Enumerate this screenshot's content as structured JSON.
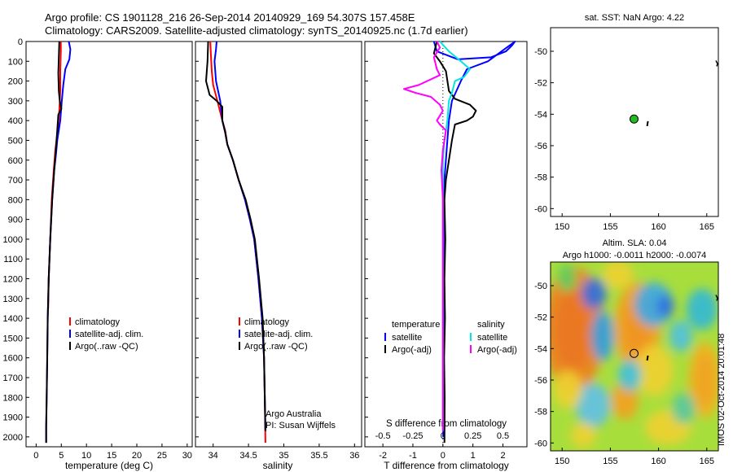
{
  "header": {
    "line1": "Argo profile: CS 1901128_216 26-Sep-2014 20140929_169 54.307S 157.458E",
    "line2": "Climatology: CARS2009. Satellite-adjusted climatology: synTS_20140925.nc (1.7d earlier)"
  },
  "colors": {
    "climatology": "#ff0000",
    "satellite": "#0000ff",
    "argo": "#000000",
    "sal_satellite": "#00e5e5",
    "sal_argo": "#ff00ff",
    "argo_marker": "#22bb22"
  },
  "chart_data": [
    {
      "id": "temp",
      "type": "line",
      "xlabel": "temperature (deg C)",
      "ylim": [
        0,
        2050
      ],
      "xlim": [
        -2,
        31
      ],
      "xticks": [
        0,
        5,
        10,
        15,
        20,
        25,
        30
      ],
      "yticks": [
        0,
        100,
        200,
        300,
        400,
        500,
        600,
        700,
        800,
        900,
        1000,
        1100,
        1200,
        1300,
        1400,
        1500,
        1600,
        1700,
        1800,
        1900,
        2000
      ],
      "legend": [
        {
          "label": "climatology",
          "color": "#ff0000"
        },
        {
          "label": "satellite-adj. clim.",
          "color": "#0000ff"
        },
        {
          "label": "Argo(..raw -QC)",
          "color": "#000000"
        }
      ],
      "series": [
        {
          "color": "#ff0000",
          "points": [
            [
              4.9,
              0
            ],
            [
              4.9,
              50
            ],
            [
              4.8,
              150
            ],
            [
              4.8,
              250
            ],
            [
              4.6,
              350
            ],
            [
              4.3,
              450
            ],
            [
              3.8,
              550
            ],
            [
              3.5,
              650
            ],
            [
              3.1,
              800
            ],
            [
              2.8,
              1000
            ],
            [
              2.5,
              1200
            ],
            [
              2.4,
              1350
            ]
          ]
        },
        {
          "color": "#0000ff",
          "points": [
            [
              6.5,
              0
            ],
            [
              6.8,
              40
            ],
            [
              6.6,
              90
            ],
            [
              5.8,
              140
            ],
            [
              5.4,
              220
            ],
            [
              5.1,
              300
            ],
            [
              4.8,
              400
            ],
            [
              4.2,
              500
            ],
            [
              3.9,
              580
            ],
            [
              3.6,
              650
            ],
            [
              3.2,
              800
            ],
            [
              2.8,
              1000
            ],
            [
              2.5,
              1200
            ],
            [
              2.3,
              1400
            ],
            [
              2.2,
              1600
            ],
            [
              2.1,
              1800
            ],
            [
              2.0,
              1950
            ],
            [
              2.0,
              2030
            ]
          ]
        },
        {
          "color": "#000000",
          "points": [
            [
              4.6,
              0
            ],
            [
              4.5,
              80
            ],
            [
              4.4,
              160
            ],
            [
              4.5,
              250
            ],
            [
              4.7,
              300
            ],
            [
              5.0,
              340
            ],
            [
              4.4,
              370
            ],
            [
              4.2,
              450
            ],
            [
              3.9,
              550
            ],
            [
              3.6,
              650
            ],
            [
              3.2,
              800
            ],
            [
              2.8,
              1000
            ],
            [
              2.5,
              1200
            ],
            [
              2.3,
              1400
            ],
            [
              2.2,
              1600
            ],
            [
              2.1,
              1800
            ],
            [
              2.0,
              1950
            ],
            [
              2.0,
              2030
            ]
          ]
        }
      ]
    },
    {
      "id": "sal",
      "type": "line",
      "xlabel": "salinity",
      "ylim": [
        0,
        2050
      ],
      "xlim": [
        33.75,
        36.1
      ],
      "xticks": [
        34,
        34.5,
        35,
        35.5,
        36
      ],
      "legend": [
        {
          "label": "climatology",
          "color": "#ff0000"
        },
        {
          "label": "satellite-adj. clim.",
          "color": "#0000ff"
        },
        {
          "label": "Argo(..raw -QC)",
          "color": "#000000"
        }
      ],
      "annotations": [
        "Argo Australia",
        "PI: Susan Wijffels"
      ],
      "series": [
        {
          "color": "#ff0000",
          "points": [
            [
              33.96,
              0
            ],
            [
              33.97,
              80
            ],
            [
              33.98,
              150
            ],
            [
              34.0,
              220
            ],
            [
              34.06,
              300
            ],
            [
              34.13,
              400
            ],
            [
              34.17,
              450
            ],
            [
              34.2,
              520
            ],
            [
              34.28,
              600
            ],
            [
              34.36,
              700
            ],
            [
              34.45,
              800
            ],
            [
              34.52,
              900
            ],
            [
              34.58,
              1000
            ],
            [
              34.64,
              1200
            ],
            [
              34.69,
              1400
            ],
            [
              34.72,
              1600
            ],
            [
              34.73,
              1800
            ],
            [
              34.74,
              2030
            ]
          ]
        },
        {
          "color": "#0000ff",
          "points": [
            [
              34.05,
              0
            ],
            [
              34.04,
              40
            ],
            [
              34.02,
              100
            ],
            [
              34.04,
              200
            ],
            [
              34.1,
              300
            ],
            [
              34.13,
              400
            ],
            [
              34.17,
              460
            ],
            [
              34.2,
              520
            ],
            [
              34.28,
              600
            ],
            [
              34.36,
              700
            ],
            [
              34.45,
              800
            ],
            [
              34.52,
              900
            ],
            [
              34.58,
              1000
            ],
            [
              34.64,
              1200
            ],
            [
              34.69,
              1400
            ],
            [
              34.72,
              1600
            ],
            [
              34.73,
              1800
            ],
            [
              34.74,
              1970
            ]
          ]
        },
        {
          "color": "#000000",
          "points": [
            [
              33.93,
              0
            ],
            [
              33.92,
              100
            ],
            [
              33.9,
              200
            ],
            [
              33.95,
              270
            ],
            [
              34.05,
              300
            ],
            [
              34.13,
              330
            ],
            [
              34.13,
              400
            ],
            [
              34.17,
              460
            ],
            [
              34.2,
              520
            ],
            [
              34.28,
              600
            ],
            [
              34.36,
              700
            ],
            [
              34.46,
              800
            ],
            [
              34.53,
              900
            ],
            [
              34.59,
              1000
            ],
            [
              34.65,
              1200
            ],
            [
              34.7,
              1400
            ],
            [
              34.72,
              1600
            ],
            [
              34.73,
              1800
            ],
            [
              34.74,
              1970
            ]
          ]
        }
      ]
    },
    {
      "id": "diff",
      "type": "line",
      "xlabel": "T difference from climatology",
      "xlabel_top": "S difference from climatology",
      "ylim": [
        0,
        2050
      ],
      "xlim": [
        -2.6,
        2.8
      ],
      "xticks": [
        -2,
        -1,
        0,
        1,
        2
      ],
      "xticks_top": [
        {
          "label": "-0.5",
          "t": -2
        },
        {
          "label": "-0.25",
          "t": -1
        },
        {
          "label": "0",
          "t": 0
        },
        {
          "label": "0.25",
          "t": 1
        },
        {
          "label": "0.5",
          "t": 2
        }
      ],
      "legend_left": {
        "title": "temperature",
        "items": [
          {
            "label": "satellite",
            "color": "#0000ff"
          },
          {
            "label": "Argo(-adj)",
            "color": "#000000"
          }
        ]
      },
      "legend_right": {
        "title": "salinity",
        "items": [
          {
            "label": "satellite",
            "color": "#00e5e5"
          },
          {
            "label": "Argo(-adj)",
            "color": "#ff00ff"
          }
        ]
      },
      "series": [
        {
          "color": "#0000ff",
          "points": [
            [
              -0.3,
              0
            ],
            [
              -0.2,
              50
            ],
            [
              0.5,
              90
            ],
            [
              1.6,
              80
            ],
            [
              2.1,
              50
            ],
            [
              2.3,
              20
            ],
            [
              2.4,
              0
            ],
            [
              1.5,
              100
            ],
            [
              0.8,
              140
            ],
            [
              0.6,
              200
            ],
            [
              0.3,
              300
            ],
            [
              0.2,
              400
            ],
            [
              0.15,
              500
            ],
            [
              0.1,
              600
            ],
            [
              0.05,
              700
            ],
            [
              0.03,
              900
            ],
            [
              0.02,
              1200
            ],
            [
              0.02,
              1600
            ],
            [
              0.01,
              2000
            ]
          ]
        },
        {
          "color": "#000000",
          "points": [
            [
              -0.2,
              0
            ],
            [
              -0.3,
              60
            ],
            [
              -0.1,
              100
            ],
            [
              0.1,
              150
            ],
            [
              0.2,
              250
            ],
            [
              0.4,
              290
            ],
            [
              0.9,
              320
            ],
            [
              1.1,
              350
            ],
            [
              1.0,
              380
            ],
            [
              0.8,
              400
            ],
            [
              0.4,
              420
            ],
            [
              0.3,
              500
            ],
            [
              0.2,
              600
            ],
            [
              0.1,
              700
            ],
            [
              0.05,
              800
            ],
            [
              0.08,
              1000
            ],
            [
              0.05,
              1200
            ],
            [
              0.07,
              1400
            ],
            [
              0.04,
              1600
            ],
            [
              0.06,
              1800
            ],
            [
              0.05,
              2030
            ]
          ]
        },
        {
          "color": "#00e5e5",
          "points": [
            [
              -0.1,
              0
            ],
            [
              0.2,
              50
            ],
            [
              0.6,
              100
            ],
            [
              0.9,
              140
            ],
            [
              0.7,
              180
            ],
            [
              0.4,
              200
            ],
            [
              0.3,
              260
            ],
            [
              0.2,
              300
            ],
            [
              0.15,
              400
            ],
            [
              0.05,
              500
            ],
            [
              0.0,
              600
            ],
            [
              0.0,
              800
            ],
            [
              0.0,
              1000
            ],
            [
              0.0,
              1200
            ],
            [
              0.0,
              1500
            ],
            [
              0.0,
              1800
            ],
            [
              0.0,
              1970
            ]
          ]
        },
        {
          "color": "#ff00ff",
          "points": [
            [
              -0.2,
              0
            ],
            [
              -0.1,
              30
            ],
            [
              -0.3,
              80
            ],
            [
              -0.2,
              140
            ],
            [
              -0.1,
              170
            ],
            [
              -0.8,
              220
            ],
            [
              -1.3,
              240
            ],
            [
              -0.9,
              260
            ],
            [
              -0.4,
              280
            ],
            [
              -0.1,
              320
            ],
            [
              0.0,
              350
            ],
            [
              -0.2,
              400
            ],
            [
              -0.1,
              420
            ],
            [
              0.1,
              450
            ],
            [
              0.0,
              550
            ],
            [
              -0.05,
              650
            ],
            [
              0.0,
              800
            ],
            [
              0.0,
              1000
            ],
            [
              0.0,
              1200
            ],
            [
              0.0,
              1500
            ],
            [
              0.0,
              1800
            ],
            [
              0.0,
              1970
            ]
          ]
        }
      ]
    },
    {
      "id": "sst_map",
      "type": "scatter",
      "title": "sat. SST: NaN  Argo: 4.22",
      "xlim": [
        148.8,
        166.2
      ],
      "ylim": [
        -60.5,
        -48.5
      ],
      "xticks": [
        150,
        155,
        160,
        165
      ],
      "yticks": [
        -60,
        -58,
        -56,
        -54,
        -52,
        -50
      ],
      "points": [
        {
          "x": 157.458,
          "y": -54.307,
          "color": "#22bb22"
        }
      ]
    },
    {
      "id": "sla_map",
      "type": "heatmap",
      "title": "Altim. SLA: 0.04",
      "subtitle": "Argo h1000: -0.0011  h2000: -0.0074",
      "xlim": [
        148.8,
        166.2
      ],
      "ylim": [
        -60.5,
        -48.5
      ],
      "xticks": [
        150,
        155,
        160,
        165
      ],
      "yticks": [
        -60,
        -58,
        -56,
        -54,
        -52,
        -50
      ],
      "points": [
        {
          "x": 157.458,
          "y": -54.307,
          "color": "#000000"
        }
      ],
      "watermark": "IMOS 02-Oct-2014 20:01:48"
    }
  ]
}
